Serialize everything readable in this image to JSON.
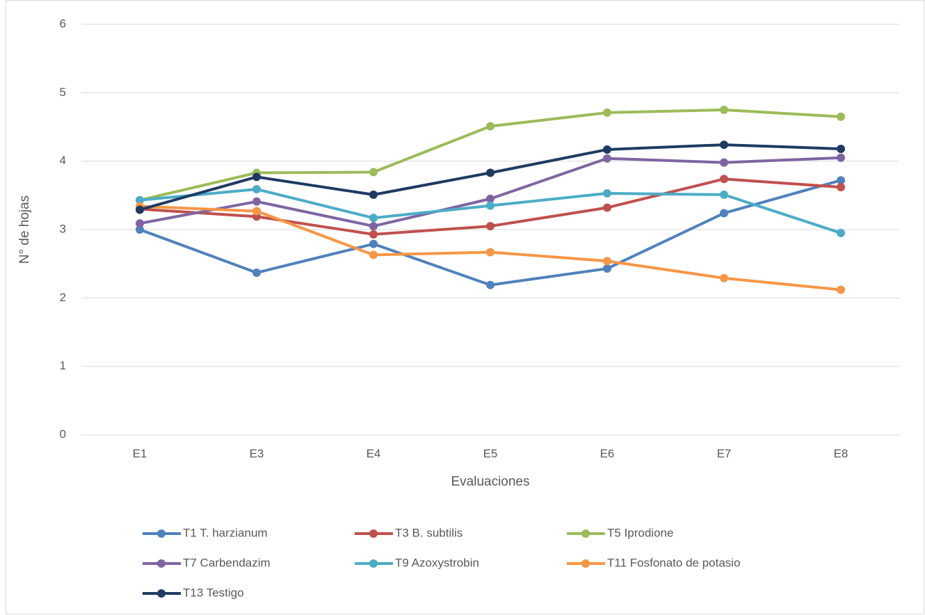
{
  "chart_data": {
    "type": "line",
    "x_label": "Evaluaciones",
    "y_label": "N° de hojas",
    "categories": [
      "E1",
      "E3",
      "E4",
      "E5",
      "E6",
      "E7",
      "E8"
    ],
    "ylim": [
      0,
      6
    ],
    "yticks": [
      0,
      1,
      2,
      3,
      4,
      5,
      6
    ],
    "grid": true,
    "legend": "bottom",
    "series": [
      {
        "name": "T1 T. harzianum",
        "color": "#4f81bd",
        "values": [
          3.0,
          2.37,
          2.79,
          2.19,
          2.43,
          3.24,
          3.72
        ]
      },
      {
        "name": "T3 B. subtilis",
        "color": "#c0504d",
        "values": [
          3.3,
          3.19,
          2.93,
          3.05,
          3.32,
          3.74,
          3.62
        ]
      },
      {
        "name": "T5 Iprodione",
        "color": "#9bbb59",
        "values": [
          3.43,
          3.83,
          3.84,
          4.51,
          4.71,
          4.75,
          4.65
        ]
      },
      {
        "name": "T7 Carbendazim",
        "color": "#8064a2",
        "values": [
          3.09,
          3.41,
          3.05,
          3.45,
          4.04,
          3.98,
          4.05
        ]
      },
      {
        "name": "T9 Azoxystrobin",
        "color": "#4bacc6",
        "values": [
          3.43,
          3.59,
          3.17,
          3.35,
          3.53,
          3.51,
          2.95
        ]
      },
      {
        "name": "T11 Fosfonato de potasio",
        "color": "#f79646",
        "values": [
          3.34,
          3.27,
          2.63,
          2.67,
          2.54,
          2.29,
          2.12
        ]
      },
      {
        "name": "T13 Testigo",
        "color": "#1f3b63",
        "values": [
          3.29,
          3.77,
          3.51,
          3.83,
          4.17,
          4.24,
          4.18
        ]
      }
    ]
  }
}
